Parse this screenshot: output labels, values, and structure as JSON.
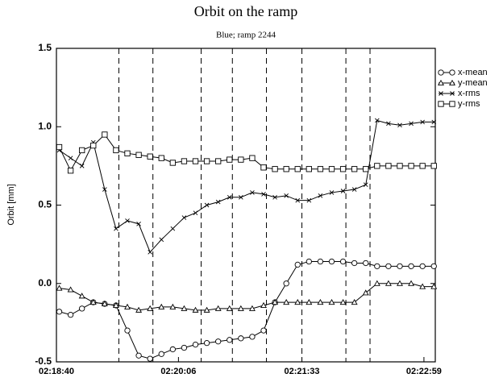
{
  "chart_data": {
    "type": "line",
    "title": "Orbit on the ramp",
    "subtitle": "Blue; ramp 2244",
    "y_label": "Orbit [mm]",
    "x": [
      "02:18:42",
      "02:18:50",
      "02:18:58",
      "02:19:06",
      "02:19:14",
      "02:19:22",
      "02:19:30",
      "02:19:38",
      "02:19:46",
      "02:19:54",
      "02:20:02",
      "02:20:10",
      "02:20:18",
      "02:20:26",
      "02:20:34",
      "02:20:42",
      "02:20:50",
      "02:20:58",
      "02:21:06",
      "02:21:14",
      "02:21:22",
      "02:21:30",
      "02:21:38",
      "02:21:46",
      "02:21:54",
      "02:22:02",
      "02:22:10",
      "02:22:18",
      "02:22:26",
      "02:22:34",
      "02:22:42",
      "02:22:50",
      "02:22:58",
      "02:23:06"
    ],
    "series": [
      {
        "name": "x-mean",
        "color": "#000000",
        "marker": "circle",
        "values": [
          -0.18,
          -0.2,
          -0.16,
          -0.12,
          -0.13,
          -0.14,
          -0.3,
          -0.46,
          -0.48,
          -0.45,
          -0.42,
          -0.41,
          -0.39,
          -0.38,
          -0.37,
          -0.36,
          -0.35,
          -0.34,
          -0.3,
          -0.12,
          0.0,
          0.12,
          0.14,
          0.14,
          0.14,
          0.14,
          0.13,
          0.13,
          0.11,
          0.11,
          0.11,
          0.11,
          0.11,
          0.11
        ]
      },
      {
        "name": "y-mean",
        "color": "#000000",
        "marker": "triangle",
        "values": [
          -0.03,
          -0.04,
          -0.08,
          -0.12,
          -0.13,
          -0.14,
          -0.15,
          -0.17,
          -0.16,
          -0.15,
          -0.15,
          -0.16,
          -0.17,
          -0.17,
          -0.16,
          -0.16,
          -0.16,
          -0.16,
          -0.14,
          -0.12,
          -0.12,
          -0.12,
          -0.12,
          -0.12,
          -0.12,
          -0.12,
          -0.12,
          -0.06,
          0.0,
          0.0,
          0.0,
          0.0,
          -0.02,
          -0.02
        ]
      },
      {
        "name": "x-rms",
        "color": "#000000",
        "marker": "x",
        "values": [
          0.85,
          0.8,
          0.75,
          0.9,
          0.6,
          0.35,
          0.4,
          0.38,
          0.2,
          0.28,
          0.35,
          0.42,
          0.45,
          0.5,
          0.52,
          0.55,
          0.55,
          0.58,
          0.57,
          0.55,
          0.56,
          0.53,
          0.53,
          0.56,
          0.58,
          0.59,
          0.6,
          0.63,
          1.04,
          1.02,
          1.01,
          1.02,
          1.03,
          1.03
        ]
      },
      {
        "name": "y-rms",
        "color": "#000000",
        "marker": "square",
        "values": [
          0.87,
          0.72,
          0.85,
          0.88,
          0.95,
          0.85,
          0.83,
          0.82,
          0.81,
          0.8,
          0.77,
          0.78,
          0.78,
          0.78,
          0.78,
          0.79,
          0.79,
          0.8,
          0.74,
          0.73,
          0.73,
          0.73,
          0.73,
          0.73,
          0.73,
          0.73,
          0.73,
          0.73,
          0.75,
          0.75,
          0.75,
          0.75,
          0.75,
          0.75
        ]
      }
    ],
    "xlim": [
      "02:18:40",
      "02:23:07"
    ],
    "xticks": [
      "02:18:40",
      "02:20:06",
      "02:21:33",
      "02:22:59"
    ],
    "ylim": [
      -0.5,
      1.5
    ],
    "yticks": [
      -0.5,
      {
        "value": 0,
        "label": "0.0"
      },
      0.5,
      {
        "value": 1,
        "label": "1.0"
      },
      1.5
    ],
    "vlines": [
      "02:19:24",
      "02:19:48",
      "02:20:22",
      "02:20:44",
      "02:21:08",
      "02:21:33",
      "02:22:04",
      "02:22:21"
    ],
    "legend": "right"
  }
}
